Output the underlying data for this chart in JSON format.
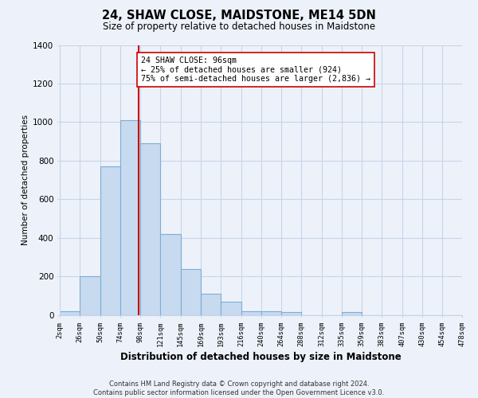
{
  "title": "24, SHAW CLOSE, MAIDSTONE, ME14 5DN",
  "subtitle": "Size of property relative to detached houses in Maidstone",
  "xlabel": "Distribution of detached houses by size in Maidstone",
  "ylabel": "Number of detached properties",
  "bin_edges": [
    "2sqm",
    "26sqm",
    "50sqm",
    "74sqm",
    "98sqm",
    "121sqm",
    "145sqm",
    "169sqm",
    "193sqm",
    "216sqm",
    "240sqm",
    "264sqm",
    "288sqm",
    "312sqm",
    "335sqm",
    "359sqm",
    "383sqm",
    "407sqm",
    "430sqm",
    "454sqm",
    "478sqm"
  ],
  "bar_heights": [
    20,
    200,
    770,
    1010,
    890,
    420,
    240,
    110,
    70,
    20,
    20,
    15,
    0,
    0,
    15,
    0,
    0,
    0,
    0,
    0
  ],
  "bar_color": "#c8daf0",
  "bar_edge_color": "#7eadd4",
  "vline_x": 3,
  "vline_color": "#cc0000",
  "annotation_line1": "24 SHAW CLOSE: 96sqm",
  "annotation_line2": "← 25% of detached houses are smaller (924)",
  "annotation_line3": "75% of semi-detached houses are larger (2,836) →",
  "annotation_box_color": "#ffffff",
  "annotation_box_edge": "#cc0000",
  "ylim": [
    0,
    1400
  ],
  "yticks": [
    0,
    200,
    400,
    600,
    800,
    1000,
    1200,
    1400
  ],
  "footer": "Contains HM Land Registry data © Crown copyright and database right 2024.\nContains public sector information licensed under the Open Government Licence v3.0.",
  "background_color": "#edf2fa",
  "grid_color": "#c8d4e8"
}
